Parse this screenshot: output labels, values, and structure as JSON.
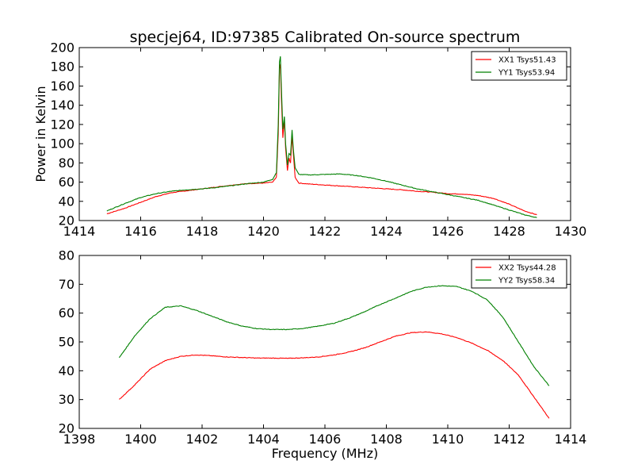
{
  "figure": {
    "title": "specjej64, ID:97385 Calibrated On-source spectrum",
    "xlabel": "Frequency (MHz)"
  },
  "chart_data": [
    {
      "type": "line",
      "ylabel": "Power in Kelvin",
      "xlim": [
        1414,
        1430
      ],
      "ylim": [
        20,
        200
      ],
      "xticks": [
        1414,
        1416,
        1418,
        1420,
        1422,
        1424,
        1426,
        1428,
        1430
      ],
      "yticks": [
        20,
        40,
        60,
        80,
        100,
        120,
        140,
        160,
        180,
        200
      ],
      "legend_position": "top-right",
      "grid": false,
      "series": [
        {
          "name": "XX1 Tsys51.43",
          "color": "#ff0000",
          "points": [
            [
              1414.9,
              27
            ],
            [
              1415.5,
              33
            ],
            [
              1416.0,
              39
            ],
            [
              1416.5,
              45
            ],
            [
              1417.0,
              49
            ],
            [
              1417.5,
              51
            ],
            [
              1418.0,
              53
            ],
            [
              1418.5,
              55
            ],
            [
              1419.0,
              57
            ],
            [
              1419.5,
              58.5
            ],
            [
              1420.0,
              59
            ],
            [
              1420.3,
              60
            ],
            [
              1420.42,
              65
            ],
            [
              1420.48,
              110
            ],
            [
              1420.52,
              178
            ],
            [
              1420.55,
              183
            ],
            [
              1420.58,
              150
            ],
            [
              1420.63,
              106
            ],
            [
              1420.68,
              125
            ],
            [
              1420.72,
              95
            ],
            [
              1420.78,
              72
            ],
            [
              1420.83,
              85
            ],
            [
              1420.88,
              80
            ],
            [
              1420.93,
              108
            ],
            [
              1420.97,
              90
            ],
            [
              1421.03,
              65
            ],
            [
              1421.15,
              59
            ],
            [
              1421.5,
              58
            ],
            [
              1422.0,
              57
            ],
            [
              1422.5,
              56
            ],
            [
              1423.0,
              55
            ],
            [
              1423.5,
              54
            ],
            [
              1424.0,
              53
            ],
            [
              1424.5,
              52
            ],
            [
              1425.0,
              50.5
            ],
            [
              1425.5,
              49.5
            ],
            [
              1426.0,
              48
            ],
            [
              1426.5,
              47.5
            ],
            [
              1427.0,
              46
            ],
            [
              1427.5,
              43
            ],
            [
              1428.0,
              37
            ],
            [
              1428.5,
              30
            ],
            [
              1428.9,
              26
            ]
          ]
        },
        {
          "name": "YY1 Tsys53.94",
          "color": "#008000",
          "points": [
            [
              1414.9,
              30
            ],
            [
              1415.5,
              38
            ],
            [
              1416.0,
              44
            ],
            [
              1416.5,
              48
            ],
            [
              1417.0,
              50.5
            ],
            [
              1417.5,
              52
            ],
            [
              1418.0,
              53
            ],
            [
              1418.5,
              54.5
            ],
            [
              1419.0,
              56.5
            ],
            [
              1419.5,
              58.5
            ],
            [
              1420.0,
              60
            ],
            [
              1420.3,
              63
            ],
            [
              1420.42,
              70
            ],
            [
              1420.48,
              120
            ],
            [
              1420.52,
              185
            ],
            [
              1420.55,
              191
            ],
            [
              1420.58,
              160
            ],
            [
              1420.63,
              115
            ],
            [
              1420.68,
              128
            ],
            [
              1420.72,
              100
            ],
            [
              1420.78,
              78
            ],
            [
              1420.83,
              90
            ],
            [
              1420.88,
              88
            ],
            [
              1420.93,
              114
            ],
            [
              1420.97,
              95
            ],
            [
              1421.03,
              75
            ],
            [
              1421.15,
              68
            ],
            [
              1421.5,
              67.5
            ],
            [
              1422.0,
              68
            ],
            [
              1422.5,
              68.5
            ],
            [
              1423.0,
              67
            ],
            [
              1423.5,
              64.5
            ],
            [
              1424.0,
              61
            ],
            [
              1424.5,
              57
            ],
            [
              1425.0,
              53
            ],
            [
              1425.5,
              50
            ],
            [
              1426.0,
              47
            ],
            [
              1426.5,
              44
            ],
            [
              1427.0,
              41
            ],
            [
              1427.5,
              36
            ],
            [
              1428.0,
              31
            ],
            [
              1428.5,
              26
            ],
            [
              1428.9,
              23
            ]
          ]
        }
      ]
    },
    {
      "type": "line",
      "ylabel": "",
      "xlim": [
        1398,
        1414
      ],
      "ylim": [
        20,
        80
      ],
      "xticks": [
        1398,
        1400,
        1402,
        1404,
        1406,
        1408,
        1410,
        1412,
        1414
      ],
      "yticks": [
        20,
        30,
        40,
        50,
        60,
        70,
        80
      ],
      "legend_position": "top-right",
      "grid": false,
      "series": [
        {
          "name": "XX2 Tsys44.28",
          "color": "#ff0000",
          "points": [
            [
              1399.3,
              30
            ],
            [
              1399.8,
              35
            ],
            [
              1400.3,
              40.5
            ],
            [
              1400.8,
              43.5
            ],
            [
              1401.3,
              45
            ],
            [
              1401.8,
              45.5
            ],
            [
              1402.3,
              45.2
            ],
            [
              1402.8,
              44.8
            ],
            [
              1403.3,
              44.6
            ],
            [
              1403.8,
              44.4
            ],
            [
              1404.3,
              44.4
            ],
            [
              1404.8,
              44.3
            ],
            [
              1405.3,
              44.5
            ],
            [
              1405.8,
              44.8
            ],
            [
              1406.3,
              45.5
            ],
            [
              1406.8,
              46.5
            ],
            [
              1407.3,
              48
            ],
            [
              1407.8,
              50
            ],
            [
              1408.3,
              52
            ],
            [
              1408.8,
              53.2
            ],
            [
              1409.3,
              53.5
            ],
            [
              1409.8,
              52.8
            ],
            [
              1410.3,
              51.5
            ],
            [
              1410.8,
              49.5
            ],
            [
              1411.3,
              47
            ],
            [
              1411.8,
              43.5
            ],
            [
              1412.3,
              38.5
            ],
            [
              1412.8,
              31
            ],
            [
              1413.3,
              23.5
            ]
          ]
        },
        {
          "name": "YY2 Tsys58.34",
          "color": "#008000",
          "points": [
            [
              1399.3,
              44.5
            ],
            [
              1399.8,
              52
            ],
            [
              1400.3,
              58
            ],
            [
              1400.8,
              62
            ],
            [
              1401.3,
              62.5
            ],
            [
              1401.8,
              61
            ],
            [
              1402.3,
              59
            ],
            [
              1402.8,
              57
            ],
            [
              1403.3,
              55.5
            ],
            [
              1403.8,
              54.6
            ],
            [
              1404.3,
              54.3
            ],
            [
              1404.8,
              54.3
            ],
            [
              1405.3,
              54.7
            ],
            [
              1405.8,
              55.5
            ],
            [
              1406.3,
              56.5
            ],
            [
              1406.8,
              58.3
            ],
            [
              1407.3,
              60.5
            ],
            [
              1407.8,
              63
            ],
            [
              1408.3,
              65.2
            ],
            [
              1408.8,
              67.5
            ],
            [
              1409.3,
              69
            ],
            [
              1409.8,
              69.5
            ],
            [
              1410.3,
              69.2
            ],
            [
              1410.8,
              67.5
            ],
            [
              1411.3,
              64.5
            ],
            [
              1411.8,
              58.5
            ],
            [
              1412.3,
              50
            ],
            [
              1412.8,
              41.5
            ],
            [
              1413.3,
              34.8
            ]
          ]
        }
      ]
    }
  ]
}
